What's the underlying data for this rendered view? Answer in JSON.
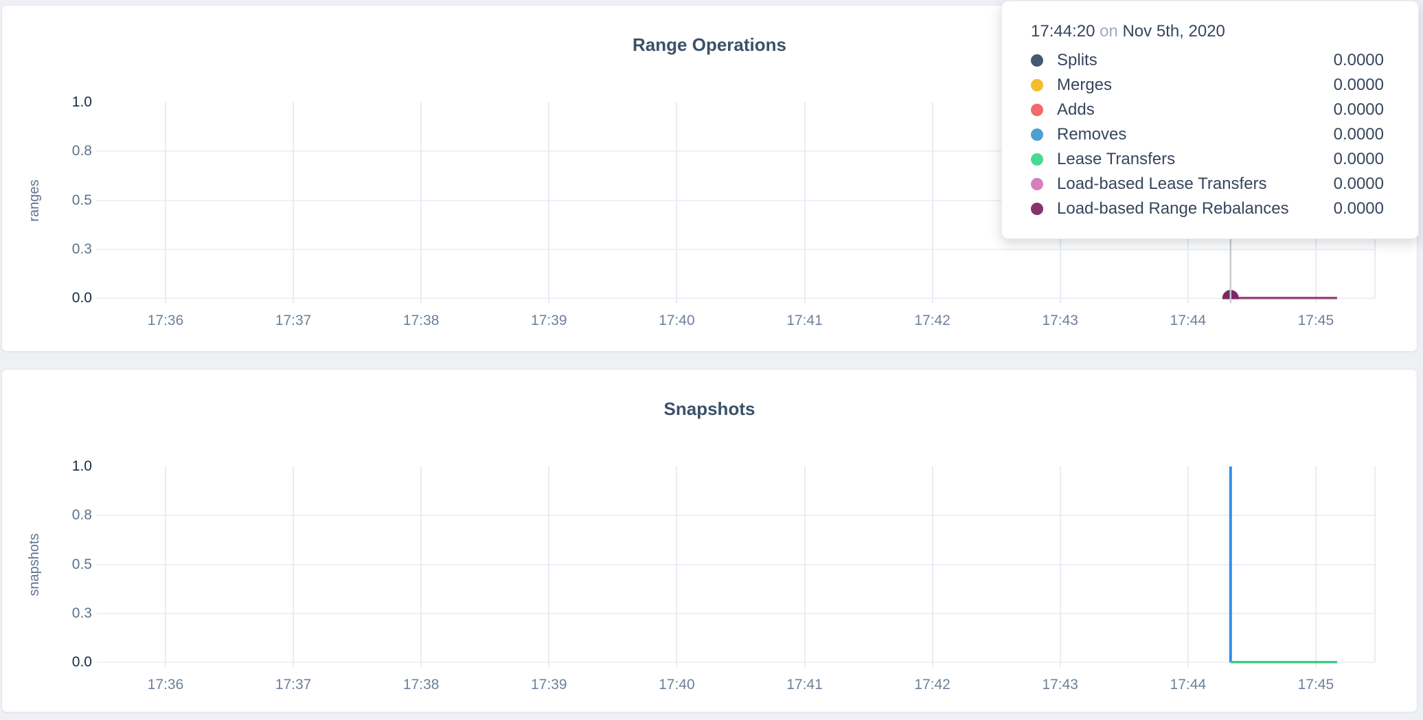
{
  "page": {
    "background": "#eef0f4"
  },
  "tooltip": {
    "time": "17:44:20",
    "on_word": "on",
    "date": "Nov 5th, 2020",
    "series": [
      {
        "label": "Splits",
        "value": "0.0000",
        "color": "#475872"
      },
      {
        "label": "Merges",
        "value": "0.0000",
        "color": "#f2be2c"
      },
      {
        "label": "Adds",
        "value": "0.0000",
        "color": "#f16969"
      },
      {
        "label": "Removes",
        "value": "0.0000",
        "color": "#4e9fd1"
      },
      {
        "label": "Lease Transfers",
        "value": "0.0000",
        "color": "#49d990"
      },
      {
        "label": "Load-based Lease Transfers",
        "value": "0.0000",
        "color": "#d77fbf"
      },
      {
        "label": "Load-based Range Rebalances",
        "value": "0.0000",
        "color": "#87326d"
      }
    ]
  },
  "chart_data": [
    {
      "type": "line",
      "title": "Range Operations",
      "ylabel": "ranges",
      "ylim": [
        0,
        1
      ],
      "grid": true,
      "yticks": [
        {
          "v": 1.0,
          "label": "1.0"
        },
        {
          "v": 0.75,
          "label": "0.8"
        },
        {
          "v": 0.5,
          "label": "0.5"
        },
        {
          "v": 0.25,
          "label": "0.3"
        },
        {
          "v": 0.0,
          "label": "0.0"
        }
      ],
      "xticks": [
        "17:36",
        "17:37",
        "17:38",
        "17:39",
        "17:40",
        "17:41",
        "17:42",
        "17:43",
        "17:44",
        "17:45"
      ],
      "series": [
        {
          "name": "Load-based Range Rebalances",
          "color": "#96467f",
          "points": [
            [
              "17:44:20",
              0
            ],
            [
              "17:45:10",
              0
            ]
          ]
        }
      ],
      "hover": {
        "time": "17:44:20",
        "value": 0,
        "dot_color": "#7c2a63",
        "crosshair_color": "#c8ccd2"
      }
    },
    {
      "type": "line",
      "title": "Snapshots",
      "ylabel": "snapshots",
      "ylim": [
        0,
        1
      ],
      "grid": true,
      "yticks": [
        {
          "v": 1.0,
          "label": "1.0"
        },
        {
          "v": 0.75,
          "label": "0.8"
        },
        {
          "v": 0.5,
          "label": "0.5"
        },
        {
          "v": 0.25,
          "label": "0.3"
        },
        {
          "v": 0.0,
          "label": "0.0"
        }
      ],
      "xticks": [
        "17:36",
        "17:37",
        "17:38",
        "17:39",
        "17:40",
        "17:41",
        "17:42",
        "17:43",
        "17:44",
        "17:45"
      ],
      "series": [
        {
          "name": "",
          "color": "#2f8fef",
          "points": [
            [
              "17:44:20",
              0
            ],
            [
              "17:44:20",
              1
            ],
            [
              "17:44:20",
              0
            ]
          ]
        },
        {
          "name": "",
          "color": "#3cc98b",
          "points": [
            [
              "17:44:20",
              0
            ],
            [
              "17:45:10",
              0
            ]
          ]
        }
      ]
    }
  ]
}
